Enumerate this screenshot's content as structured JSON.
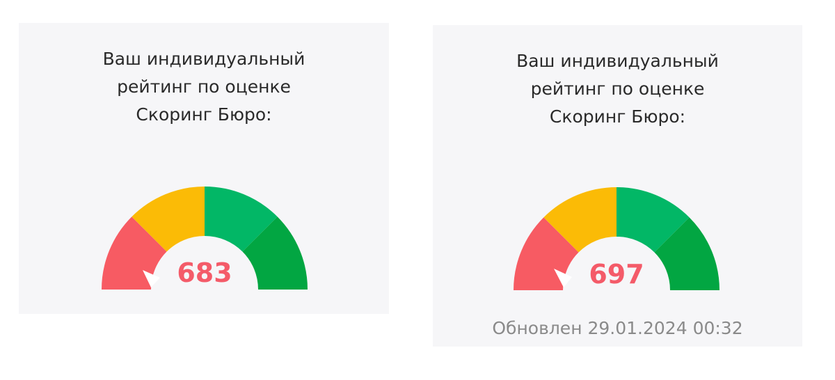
{
  "cards": [
    {
      "title_lines": [
        "Ваш индивидуальный",
        "рейтинг по оценке",
        "Скоринг Бюро:"
      ],
      "score": "683",
      "updated": ""
    },
    {
      "title_lines": [
        "Ваш индивидуальный",
        "рейтинг по оценке",
        "Скоринг Бюро:"
      ],
      "score": "697",
      "updated": "Обновлен 29.01.2024 00:32"
    }
  ],
  "gauge": {
    "segment_colors": [
      "#f75b63",
      "#fbbb06",
      "#02b766",
      "#02a642"
    ],
    "score_color": "#f45b69"
  }
}
